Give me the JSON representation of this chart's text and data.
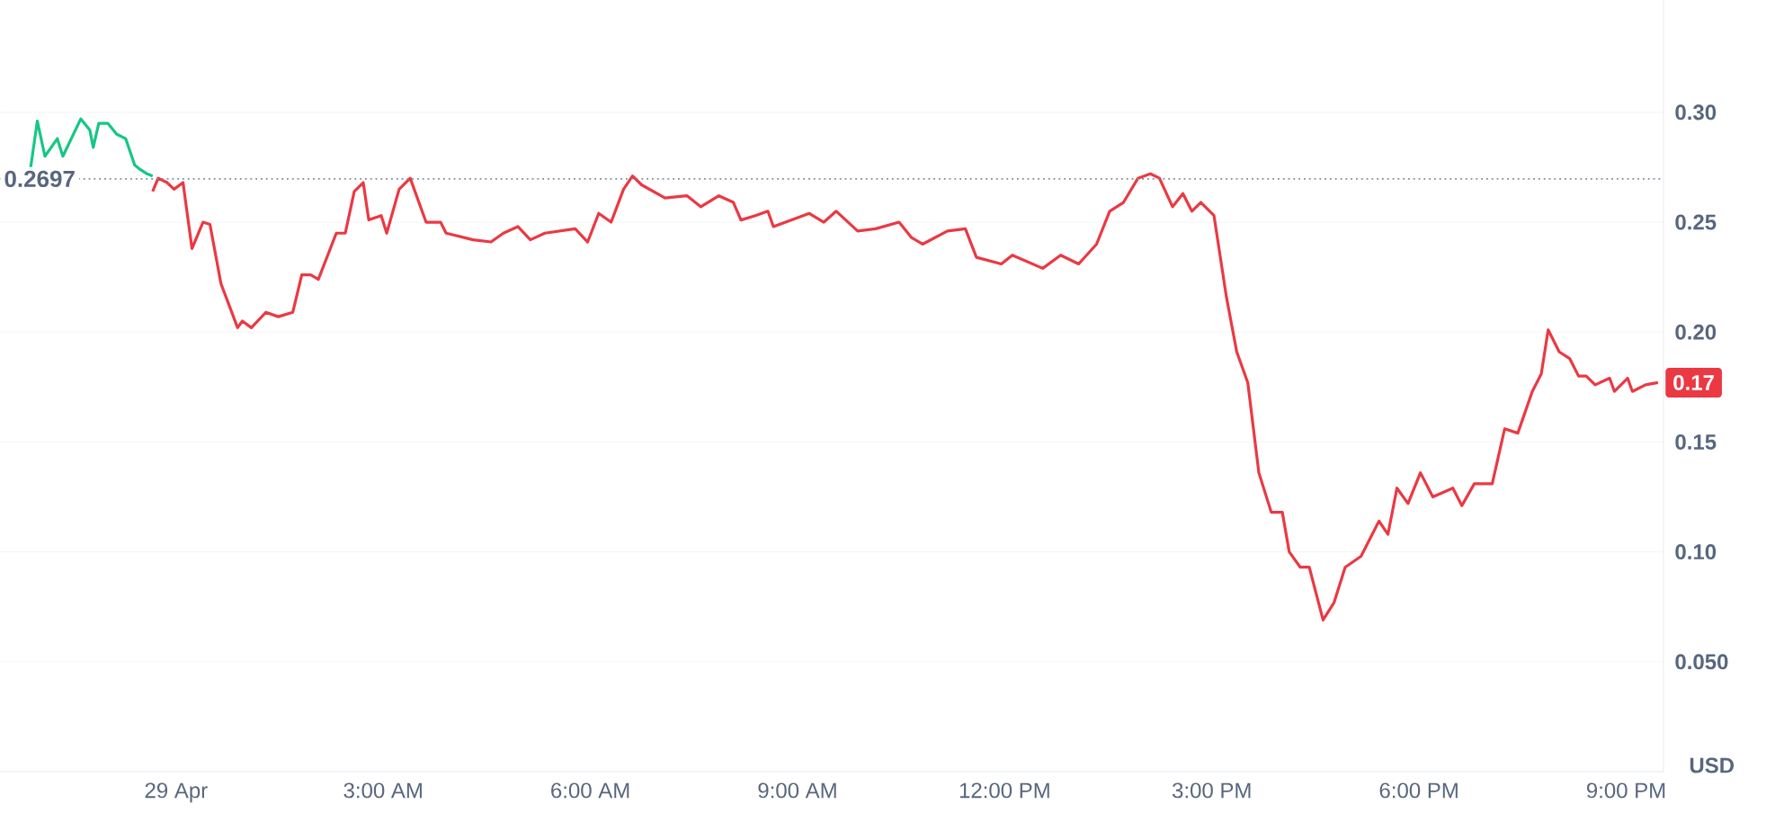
{
  "chart_data": {
    "type": "line",
    "ylabel": "USD",
    "xlim": [
      -2.55,
      21.54
    ],
    "ylim": [
      0,
      0.356
    ],
    "xticks": [
      {
        "value": 0,
        "label": "29 Apr"
      },
      {
        "value": 3,
        "label": "3:00 AM"
      },
      {
        "value": 6,
        "label": "6:00 AM"
      },
      {
        "value": 9,
        "label": "9:00 AM"
      },
      {
        "value": 12,
        "label": "12:00 PM"
      },
      {
        "value": 15,
        "label": "3:00 PM"
      },
      {
        "value": 18,
        "label": "6:00 PM"
      },
      {
        "value": 21,
        "label": "9:00 PM"
      }
    ],
    "yticks": [
      {
        "value": 0.05,
        "label": "0.050"
      },
      {
        "value": 0.1,
        "label": "0.10"
      },
      {
        "value": 0.15,
        "label": "0.15"
      },
      {
        "value": 0.2,
        "label": "0.20"
      },
      {
        "value": 0.25,
        "label": "0.25"
      },
      {
        "value": 0.3,
        "label": "0.30"
      }
    ],
    "grid": "y",
    "marker": "none",
    "line_style": "solid",
    "ref_lines": [
      {
        "axis": "y",
        "value": 0.2697,
        "label": "0.2697",
        "color": "#808a9d",
        "line_style": "dotted"
      }
    ],
    "annotations": [
      {
        "text": "0.17",
        "x": 21.46,
        "y": 0.177
      }
    ],
    "series": [
      {
        "color": "#16c784",
        "x": [
          -2.11,
          -2.01,
          -1.9,
          -1.72,
          -1.64,
          -1.38,
          -1.25,
          -1.2,
          -1.12,
          -0.99,
          -0.86,
          -0.73,
          -0.6,
          -0.52,
          -0.42,
          -0.34
        ],
        "values": [
          0.274,
          0.296,
          0.28,
          0.288,
          0.28,
          0.297,
          0.292,
          0.284,
          0.295,
          0.295,
          0.29,
          0.288,
          0.276,
          0.274,
          0.272,
          0.271
        ]
      },
      {
        "color": "#ea3943",
        "x": [
          -0.34,
          -0.26,
          -0.13,
          -0.03,
          0.1,
          0.23,
          0.39,
          0.49,
          0.65,
          0.89,
          0.96,
          1.09,
          1.3,
          1.48,
          1.69,
          1.82,
          1.95,
          2.06,
          2.32,
          2.45,
          2.58,
          2.71,
          2.79,
          2.97,
          3.05,
          3.23,
          3.39,
          3.62,
          3.83,
          3.91,
          4.3,
          4.56,
          4.74,
          4.95,
          5.13,
          5.34,
          5.78,
          5.96,
          6.12,
          6.3,
          6.48,
          6.61,
          6.74,
          7.08,
          7.4,
          7.6,
          7.86,
          8.07,
          8.18,
          8.39,
          8.57,
          8.65,
          8.91,
          9.17,
          9.38,
          9.56,
          9.87,
          10.13,
          10.47,
          10.65,
          10.81,
          11.17,
          11.43,
          11.59,
          11.95,
          12.11,
          12.55,
          12.81,
          13.07,
          13.33,
          13.52,
          13.72,
          13.93,
          14.11,
          14.24,
          14.43,
          14.58,
          14.71,
          14.84,
          15.03,
          15.21,
          15.36,
          15.52,
          15.68,
          15.86,
          16.02,
          16.12,
          16.28,
          16.41,
          16.61,
          16.77,
          16.93,
          17.16,
          17.42,
          17.55,
          17.68,
          17.84,
          18.02,
          18.2,
          18.49,
          18.62,
          18.8,
          19.06,
          19.24,
          19.43,
          19.64,
          19.77,
          19.87,
          20.03,
          20.18,
          20.31,
          20.42,
          20.55,
          20.76,
          20.83,
          21.02,
          21.09,
          21.28,
          21.46
        ],
        "values": [
          0.264,
          0.27,
          0.268,
          0.265,
          0.268,
          0.238,
          0.25,
          0.249,
          0.222,
          0.202,
          0.205,
          0.202,
          0.209,
          0.207,
          0.209,
          0.226,
          0.226,
          0.224,
          0.245,
          0.245,
          0.264,
          0.268,
          0.251,
          0.253,
          0.245,
          0.265,
          0.27,
          0.25,
          0.25,
          0.245,
          0.242,
          0.241,
          0.245,
          0.248,
          0.242,
          0.245,
          0.247,
          0.241,
          0.254,
          0.25,
          0.265,
          0.271,
          0.267,
          0.261,
          0.262,
          0.257,
          0.262,
          0.259,
          0.251,
          0.253,
          0.255,
          0.248,
          0.251,
          0.254,
          0.25,
          0.255,
          0.246,
          0.247,
          0.25,
          0.243,
          0.24,
          0.246,
          0.247,
          0.234,
          0.231,
          0.235,
          0.229,
          0.235,
          0.231,
          0.24,
          0.255,
          0.259,
          0.27,
          0.272,
          0.27,
          0.257,
          0.263,
          0.255,
          0.259,
          0.253,
          0.216,
          0.191,
          0.177,
          0.136,
          0.118,
          0.118,
          0.1,
          0.093,
          0.093,
          0.069,
          0.077,
          0.093,
          0.098,
          0.114,
          0.108,
          0.129,
          0.122,
          0.136,
          0.125,
          0.129,
          0.121,
          0.131,
          0.131,
          0.156,
          0.154,
          0.173,
          0.181,
          0.201,
          0.191,
          0.188,
          0.18,
          0.18,
          0.176,
          0.179,
          0.173,
          0.179,
          0.173,
          0.176,
          0.177
        ]
      }
    ]
  }
}
